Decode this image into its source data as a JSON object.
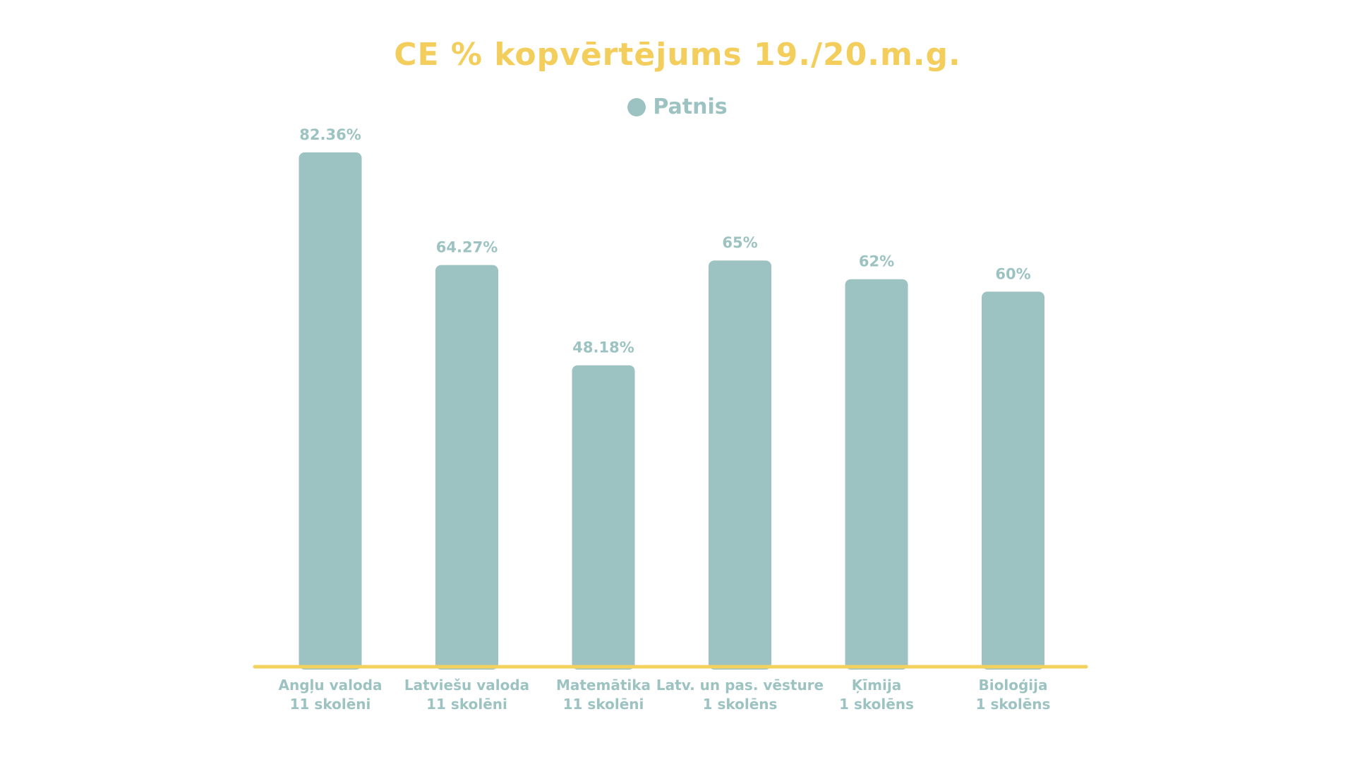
{
  "chart_data": {
    "type": "bar",
    "title": "CE % kopvērtējums 19./20.m.g.",
    "categories": [
      [
        "Angļu valoda",
        "11 skolēni"
      ],
      [
        "Latviešu valoda",
        "11 skolēni"
      ],
      [
        "Matemātika",
        "11 skolēni"
      ],
      [
        "Latv. un pas. vēsture",
        "1 skolēns"
      ],
      [
        "Ķīmija",
        "1 skolēns"
      ],
      [
        "Bioloģija",
        "1 skolēns"
      ]
    ],
    "series": [
      {
        "name": "Patnis",
        "values": [
          82.36,
          64.27,
          48.18,
          65,
          62,
          60
        ],
        "labels": [
          "82.36%",
          "64.27%",
          "48.18%",
          "65%",
          "62%",
          "60%"
        ]
      }
    ],
    "ylim": [
      0,
      100
    ],
    "grid": false,
    "legend": "top-center",
    "colors": {
      "title": "#F3CE5C",
      "bar": "#9CC3C1",
      "label": "#9CC3C1",
      "axis": "#F3D15E"
    }
  }
}
